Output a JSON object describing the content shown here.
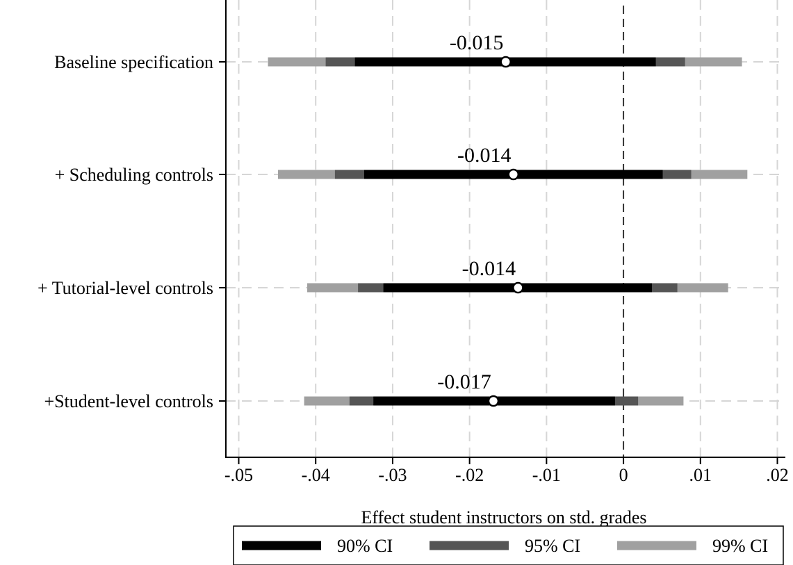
{
  "chart_data": {
    "type": "coefficient-plot",
    "xlabel": "Effect student instructors on std. grades",
    "xlim": [
      -0.05,
      0.021
    ],
    "x_ticks": [
      {
        "value": -0.05,
        "label": "-.05"
      },
      {
        "value": -0.04,
        "label": "-.04"
      },
      {
        "value": -0.03,
        "label": "-.03"
      },
      {
        "value": -0.02,
        "label": "-.02"
      },
      {
        "value": -0.01,
        "label": "-.01"
      },
      {
        "value": 0,
        "label": "0"
      },
      {
        "value": 0.01,
        "label": ".01"
      },
      {
        "value": 0.02,
        "label": ".02"
      }
    ],
    "reference_line": 0,
    "grid": true,
    "rows": [
      {
        "label": "Baseline specification",
        "estimate": -0.0153,
        "estimate_label": "-0.015",
        "ci90": [
          -0.0349,
          0.0042
        ],
        "ci95": [
          -0.0387,
          0.008
        ],
        "ci99": [
          -0.0462,
          0.0154
        ]
      },
      {
        "label": "+ Scheduling controls",
        "estimate": -0.0143,
        "estimate_label": "-0.014",
        "ci90": [
          -0.0337,
          0.0051
        ],
        "ci95": [
          -0.0375,
          0.0088
        ],
        "ci99": [
          -0.0449,
          0.0161
        ]
      },
      {
        "label": "+ Tutorial-level controls",
        "estimate": -0.0137,
        "estimate_label": "-0.014",
        "ci90": [
          -0.0312,
          0.0037
        ],
        "ci95": [
          -0.0345,
          0.007
        ],
        "ci99": [
          -0.0411,
          0.0136
        ]
      },
      {
        "label": "+Student-level controls",
        "estimate": -0.0169,
        "estimate_label": "-0.017",
        "ci90": [
          -0.0325,
          -0.0011
        ],
        "ci95": [
          -0.0356,
          0.0019
        ],
        "ci99": [
          -0.0415,
          0.0078
        ]
      }
    ],
    "legend": {
      "placement": "bottom",
      "items": [
        {
          "key": "ci90",
          "label": "90% CI",
          "color": "#000000"
        },
        {
          "key": "ci95",
          "label": "95% CI",
          "color": "#555555"
        },
        {
          "key": "ci99",
          "label": "99% CI",
          "color": "#a0a0a0"
        }
      ]
    }
  }
}
